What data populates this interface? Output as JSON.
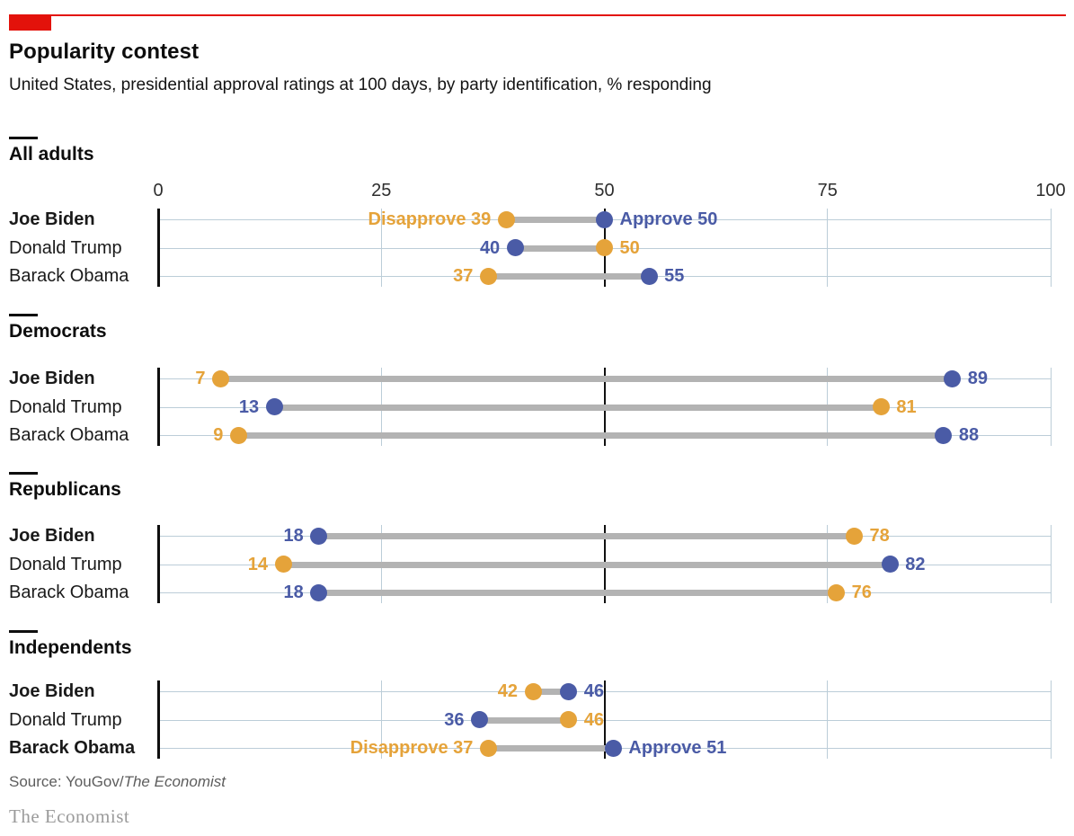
{
  "header": {
    "title": "Popularity contest",
    "subtitle": "United States, presidential approval ratings at 100 days, by party identification, % responding"
  },
  "series_labels": {
    "approve": "Approve",
    "disapprove": "Disapprove"
  },
  "colors": {
    "brand_red": "#e3120b",
    "approve_blue": "#4a5ba6",
    "disapprove_orange": "#e5a33a",
    "connector_gray": "#b3b3b3",
    "grid_blue_gray": "#bccdd8",
    "axis_black": "#0e0e0e"
  },
  "chart_data": {
    "type": "dumbbell",
    "title": "Popularity contest",
    "subtitle": "United States, presidential approval ratings at 100 days, by party identification, % responding",
    "x_range": [
      0,
      100
    ],
    "x_ticks": [
      "0",
      "25",
      "50",
      "75",
      "100"
    ],
    "reference_line_x": 50,
    "grid": true,
    "series_names": [
      "Approve",
      "Disapprove"
    ],
    "groups": [
      {
        "label": "All adults",
        "rows": [
          {
            "name": "Joe Biden",
            "bold": true,
            "approve": 50,
            "disapprove": 39,
            "show_series_labels": true
          },
          {
            "name": "Donald Trump",
            "bold": false,
            "approve": 40,
            "disapprove": 50,
            "show_series_labels": false
          },
          {
            "name": "Barack Obama",
            "bold": false,
            "approve": 55,
            "disapprove": 37,
            "show_series_labels": false
          }
        ]
      },
      {
        "label": "Democrats",
        "rows": [
          {
            "name": "Joe Biden",
            "bold": true,
            "approve": 89,
            "disapprove": 7,
            "show_series_labels": false
          },
          {
            "name": "Donald Trump",
            "bold": false,
            "approve": 13,
            "disapprove": 81,
            "show_series_labels": false
          },
          {
            "name": "Barack Obama",
            "bold": false,
            "approve": 88,
            "disapprove": 9,
            "show_series_labels": false
          }
        ]
      },
      {
        "label": "Republicans",
        "rows": [
          {
            "name": "Joe Biden",
            "bold": true,
            "approve": 18,
            "disapprove": 78,
            "show_series_labels": false
          },
          {
            "name": "Donald Trump",
            "bold": false,
            "approve": 82,
            "disapprove": 14,
            "show_series_labels": false
          },
          {
            "name": "Barack Obama",
            "bold": false,
            "approve": 18,
            "disapprove": 76,
            "show_series_labels": false
          }
        ]
      },
      {
        "label": "Independents",
        "rows": [
          {
            "name": "Joe Biden",
            "bold": true,
            "approve": 46,
            "disapprove": 42,
            "show_series_labels": false
          },
          {
            "name": "Donald Trump",
            "bold": false,
            "approve": 36,
            "disapprove": 46,
            "show_series_labels": false
          },
          {
            "name": "Barack Obama",
            "bold": true,
            "approve": 51,
            "disapprove": 37,
            "show_series_labels": true
          }
        ]
      }
    ]
  },
  "footer": {
    "source_prefix": "Source: YouGov/",
    "source_italic": "The Economist",
    "logo": "The Economist"
  }
}
